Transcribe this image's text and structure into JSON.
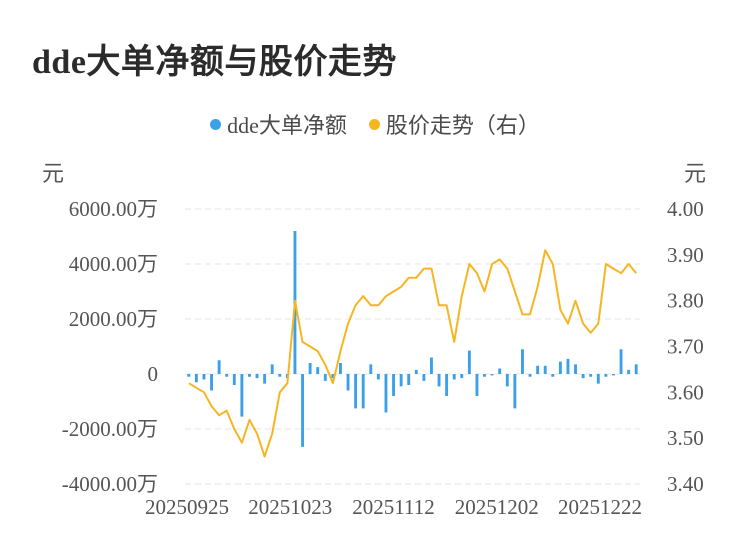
{
  "title": "dde大单净额与股价走势",
  "legend": [
    {
      "label": "dde大单净额",
      "color": "#3aa0e8"
    },
    {
      "label": "股价走势（右）",
      "color": "#f6b622"
    }
  ],
  "left_unit": "元",
  "right_unit": "元",
  "chart_data": {
    "type": "bar",
    "x_tick_labels": [
      "20250925",
      "20251023",
      "20251112",
      "20251202",
      "20251222"
    ],
    "left_axis": {
      "ticks": [
        "6000.00万",
        "4000.00万",
        "2000.00万",
        "0",
        "-2000.00万",
        "-4000.00万"
      ],
      "tick_values": [
        6000,
        4000,
        2000,
        0,
        -2000,
        -4000
      ],
      "range": [
        -4000,
        6000
      ]
    },
    "right_axis": {
      "ticks": [
        "4.00",
        "3.90",
        "3.80",
        "3.70",
        "3.60",
        "3.50",
        "3.40"
      ],
      "tick_values": [
        4.0,
        3.9,
        3.8,
        3.7,
        3.6,
        3.5,
        3.4
      ],
      "range": [
        3.4,
        4.0
      ]
    },
    "grid": true,
    "series": [
      {
        "name": "dde大单净额",
        "type": "bar",
        "axis": "left",
        "unit": "万",
        "values": [
          -100,
          -300,
          -200,
          -600,
          500,
          -100,
          -400,
          -1550,
          -100,
          -150,
          -350,
          350,
          -100,
          -150,
          5200,
          -2650,
          400,
          250,
          -250,
          -150,
          400,
          -600,
          -1250,
          -1250,
          350,
          -200,
          -1400,
          -800,
          -450,
          -400,
          150,
          -250,
          600,
          -450,
          -800,
          -200,
          -150,
          850,
          -800,
          -100,
          -50,
          200,
          -450,
          -1250,
          900,
          -100,
          300,
          300,
          -100,
          450,
          550,
          350,
          -150,
          -100,
          -350,
          -100,
          -50,
          900,
          150,
          350
        ]
      },
      {
        "name": "股价走势（右）",
        "type": "line",
        "axis": "right",
        "values": [
          3.62,
          3.61,
          3.6,
          3.57,
          3.55,
          3.56,
          3.52,
          3.49,
          3.54,
          3.51,
          3.46,
          3.51,
          3.6,
          3.62,
          3.8,
          3.71,
          3.7,
          3.69,
          3.66,
          3.62,
          3.69,
          3.75,
          3.79,
          3.81,
          3.79,
          3.79,
          3.81,
          3.82,
          3.83,
          3.85,
          3.85,
          3.87,
          3.87,
          3.79,
          3.79,
          3.71,
          3.81,
          3.88,
          3.86,
          3.82,
          3.88,
          3.89,
          3.87,
          3.82,
          3.77,
          3.77,
          3.83,
          3.91,
          3.88,
          3.78,
          3.75,
          3.8,
          3.75,
          3.73,
          3.75,
          3.88,
          3.87,
          3.86,
          3.88,
          3.86
        ]
      }
    ]
  }
}
